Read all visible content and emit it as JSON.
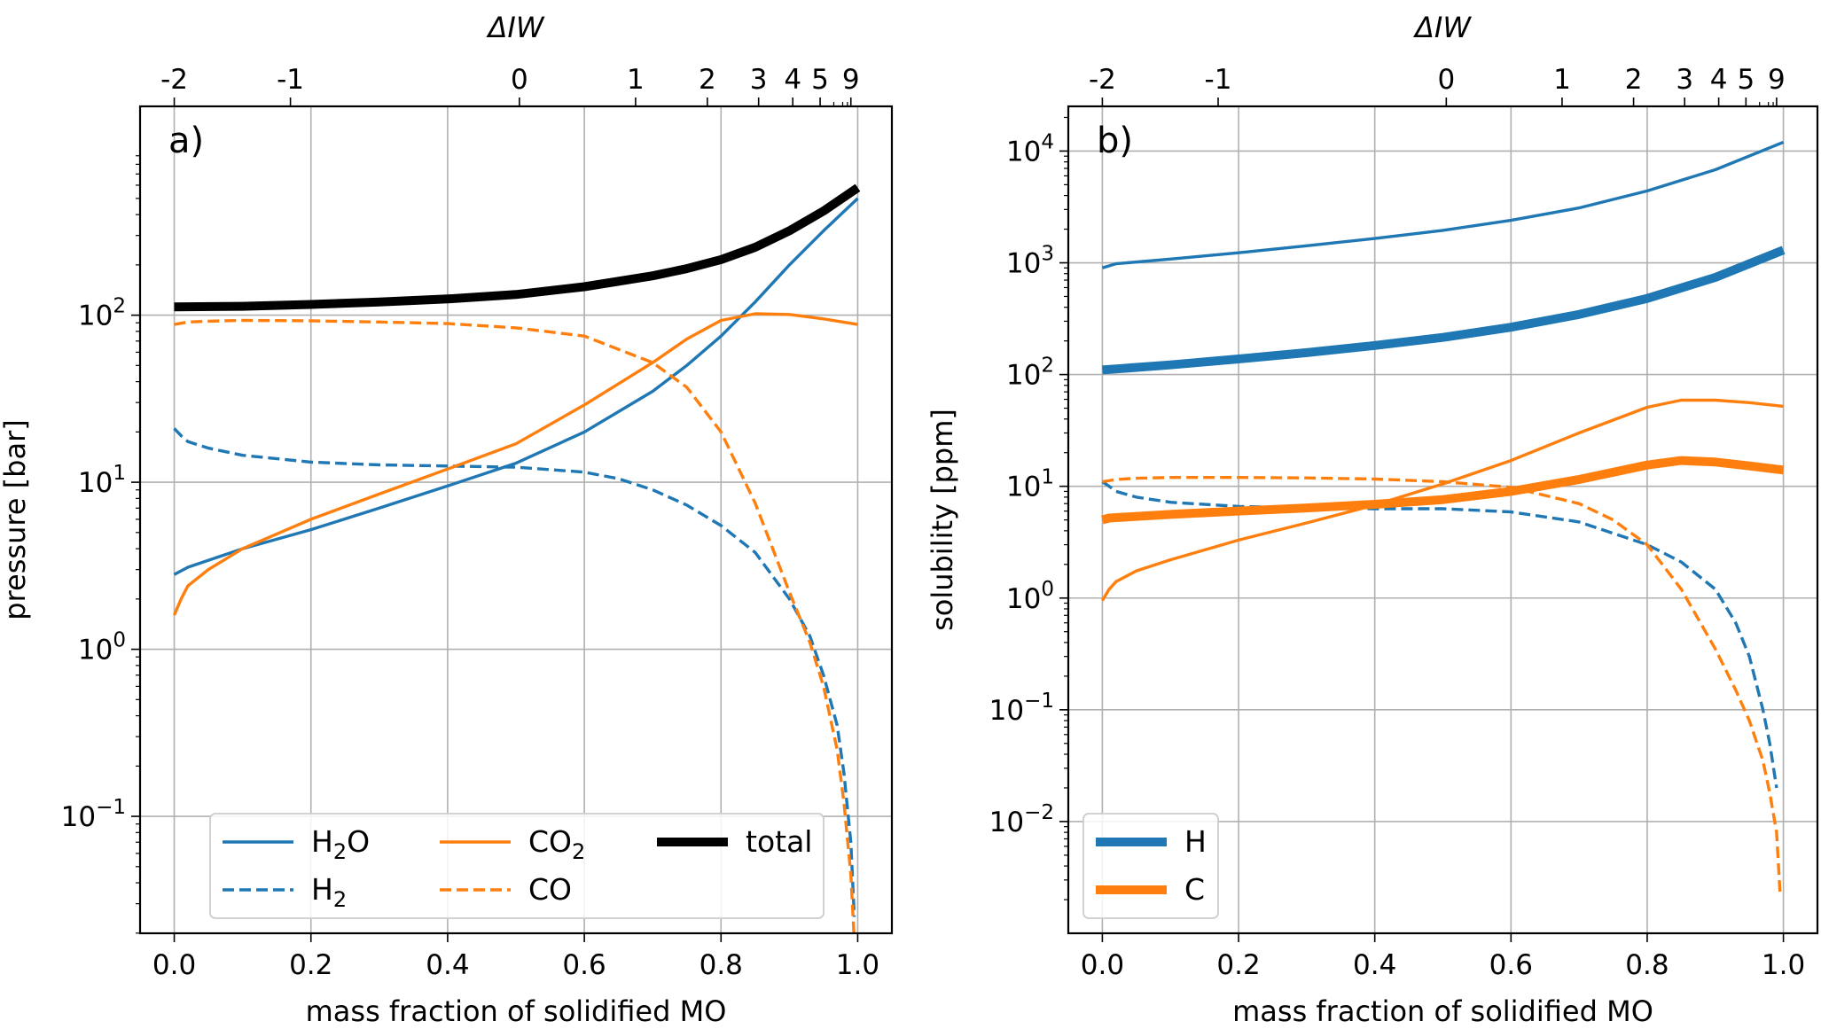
{
  "colors": {
    "blue": "#1f77b4",
    "orange": "#ff7f0e",
    "black": "#000000",
    "grid": "#b0b0b0"
  },
  "chart_data": [
    {
      "type": "line",
      "panel_label": "a)",
      "xlabel": "mass fraction of solidified MO",
      "ylabel": "pressure [bar]",
      "top_xlabel": "ΔIW",
      "xlim": [
        -0.05,
        1.05
      ],
      "ylim_log10": [
        -1.7,
        3.25
      ],
      "yscale": "log",
      "grid": true,
      "legend_position": "lower-center",
      "x_ticks": [
        "0.0",
        "0.2",
        "0.4",
        "0.6",
        "0.8",
        "1.0"
      ],
      "y_ticks": [
        {
          "base": "10",
          "exp": "−1"
        },
        {
          "base": "10",
          "exp": "0"
        },
        {
          "base": "10",
          "exp": "1"
        },
        {
          "base": "10",
          "exp": "2"
        }
      ],
      "top_ticks": [
        {
          "label": "-2",
          "x": 0.0
        },
        {
          "label": "-1",
          "x": 0.17
        },
        {
          "label": "0",
          "x": 0.505
        },
        {
          "label": "1",
          "x": 0.675
        },
        {
          "label": "2",
          "x": 0.78
        },
        {
          "label": "3",
          "x": 0.855
        },
        {
          "label": "4",
          "x": 0.905
        },
        {
          "label": "5",
          "x": 0.945
        },
        {
          "label": "9",
          "x": 0.99
        }
      ],
      "legend": [
        {
          "label": "H",
          "sub": "2",
          "tail": "O",
          "color": "#1f77b4",
          "dash": "solid",
          "width": "thin"
        },
        {
          "label": "H",
          "sub": "2",
          "tail": "",
          "color": "#1f77b4",
          "dash": "dashed",
          "width": "thin"
        },
        {
          "label": "CO",
          "sub": "2",
          "tail": "",
          "color": "#ff7f0e",
          "dash": "solid",
          "width": "thin"
        },
        {
          "label": "CO",
          "sub": "",
          "tail": "",
          "color": "#ff7f0e",
          "dash": "dashed",
          "width": "thin"
        },
        {
          "label": "total",
          "sub": "",
          "tail": "",
          "color": "#000000",
          "dash": "solid",
          "width": "thick"
        }
      ],
      "series": [
        {
          "name": "H2O",
          "color": "#1f77b4",
          "dash": "solid",
          "width": "thin",
          "x": [
            0,
            0.02,
            0.1,
            0.2,
            0.3,
            0.4,
            0.5,
            0.6,
            0.7,
            0.75,
            0.8,
            0.85,
            0.9,
            0.95,
            1.0
          ],
          "y": [
            2.8,
            3.1,
            4.0,
            5.2,
            7.0,
            9.5,
            13,
            20,
            35,
            50,
            75,
            120,
            200,
            320,
            500
          ]
        },
        {
          "name": "H2",
          "color": "#1f77b4",
          "dash": "dashed",
          "width": "thin",
          "x": [
            0,
            0.01,
            0.02,
            0.05,
            0.1,
            0.2,
            0.3,
            0.4,
            0.5,
            0.6,
            0.65,
            0.7,
            0.75,
            0.8,
            0.85,
            0.9,
            0.93,
            0.95,
            0.97,
            0.98,
            0.99,
            0.995
          ],
          "y": [
            21,
            19,
            17.5,
            16,
            14.5,
            13.2,
            12.7,
            12.5,
            12.3,
            11.5,
            10.5,
            9,
            7.3,
            5.5,
            3.8,
            2.0,
            1.2,
            0.7,
            0.35,
            0.18,
            0.07,
            0.025
          ]
        },
        {
          "name": "CO2",
          "color": "#ff7f0e",
          "dash": "solid",
          "width": "thin",
          "x": [
            0,
            0.01,
            0.02,
            0.05,
            0.1,
            0.2,
            0.3,
            0.4,
            0.5,
            0.6,
            0.7,
            0.75,
            0.8,
            0.85,
            0.9,
            0.95,
            1.0
          ],
          "y": [
            1.6,
            2.0,
            2.4,
            3.0,
            4.0,
            6.0,
            8.5,
            12,
            17,
            29,
            52,
            72,
            93,
            102,
            101,
            95,
            88
          ]
        },
        {
          "name": "CO",
          "color": "#ff7f0e",
          "dash": "dashed",
          "width": "thin",
          "x": [
            0,
            0.02,
            0.05,
            0.1,
            0.2,
            0.3,
            0.4,
            0.5,
            0.6,
            0.7,
            0.75,
            0.8,
            0.85,
            0.9,
            0.93,
            0.95,
            0.97,
            0.98,
            0.99,
            0.995
          ],
          "y": [
            88,
            91,
            92,
            93,
            92.5,
            91,
            89,
            84,
            75,
            52,
            37,
            20,
            7.5,
            2.2,
            1.1,
            0.6,
            0.25,
            0.12,
            0.045,
            0.018
          ]
        },
        {
          "name": "total",
          "color": "#000000",
          "dash": "solid",
          "width": "thick",
          "x": [
            0,
            0.1,
            0.2,
            0.3,
            0.4,
            0.5,
            0.6,
            0.7,
            0.75,
            0.8,
            0.85,
            0.9,
            0.95,
            1.0
          ],
          "y": [
            112,
            113,
            116,
            120,
            125,
            133,
            148,
            172,
            190,
            215,
            255,
            320,
            420,
            580
          ]
        }
      ]
    },
    {
      "type": "line",
      "panel_label": "b)",
      "xlabel": "mass fraction of solidified MO",
      "ylabel": "solubility [ppm]",
      "top_xlabel": "ΔIW",
      "xlim": [
        -0.05,
        1.05
      ],
      "ylim_log10": [
        -3.0,
        4.4
      ],
      "yscale": "log",
      "grid": true,
      "legend_position": "lower-left",
      "x_ticks": [
        "0.0",
        "0.2",
        "0.4",
        "0.6",
        "0.8",
        "1.0"
      ],
      "y_ticks": [
        {
          "base": "10",
          "exp": "−2"
        },
        {
          "base": "10",
          "exp": "−1"
        },
        {
          "base": "10",
          "exp": "0"
        },
        {
          "base": "10",
          "exp": "1"
        },
        {
          "base": "10",
          "exp": "2"
        },
        {
          "base": "10",
          "exp": "3"
        },
        {
          "base": "10",
          "exp": "4"
        }
      ],
      "top_ticks": [
        {
          "label": "-2",
          "x": 0.0
        },
        {
          "label": "-1",
          "x": 0.17
        },
        {
          "label": "0",
          "x": 0.505
        },
        {
          "label": "1",
          "x": 0.675
        },
        {
          "label": "2",
          "x": 0.78
        },
        {
          "label": "3",
          "x": 0.855
        },
        {
          "label": "4",
          "x": 0.905
        },
        {
          "label": "5",
          "x": 0.945
        },
        {
          "label": "9",
          "x": 0.99
        }
      ],
      "legend": [
        {
          "label": "H",
          "sub": "",
          "tail": "",
          "color": "#1f77b4",
          "dash": "solid",
          "width": "thick"
        },
        {
          "label": "C",
          "sub": "",
          "tail": "",
          "color": "#ff7f0e",
          "dash": "solid",
          "width": "thick"
        }
      ],
      "series": [
        {
          "color": "#1f77b4",
          "dash": "solid",
          "width": "thin",
          "x": [
            0,
            0.02,
            0.1,
            0.2,
            0.3,
            0.4,
            0.5,
            0.6,
            0.7,
            0.8,
            0.9,
            1.0
          ],
          "y": [
            900,
            980,
            1080,
            1230,
            1420,
            1650,
            1950,
            2400,
            3100,
            4400,
            6800,
            12000
          ]
        },
        {
          "color": "#1f77b4",
          "dash": "solid",
          "width": "thick",
          "x": [
            0,
            0.1,
            0.2,
            0.3,
            0.4,
            0.5,
            0.6,
            0.7,
            0.8,
            0.9,
            1.0
          ],
          "y": [
            110,
            122,
            138,
            157,
            182,
            215,
            265,
            345,
            480,
            740,
            1300
          ]
        },
        {
          "color": "#1f77b4",
          "dash": "dashed",
          "width": "thin",
          "x": [
            0,
            0.01,
            0.02,
            0.05,
            0.1,
            0.2,
            0.3,
            0.4,
            0.5,
            0.6,
            0.7,
            0.8,
            0.85,
            0.9,
            0.93,
            0.95,
            0.97,
            0.98,
            0.99
          ],
          "y": [
            11,
            10,
            9.0,
            8.0,
            7.2,
            6.6,
            6.4,
            6.3,
            6.3,
            5.9,
            4.8,
            3.0,
            2.1,
            1.2,
            0.6,
            0.3,
            0.1,
            0.05,
            0.02
          ]
        },
        {
          "color": "#ff7f0e",
          "dash": "solid",
          "width": "thin",
          "x": [
            0,
            0.01,
            0.02,
            0.05,
            0.1,
            0.2,
            0.3,
            0.4,
            0.5,
            0.6,
            0.7,
            0.8,
            0.85,
            0.9,
            0.95,
            1.0
          ],
          "y": [
            0.95,
            1.2,
            1.4,
            1.75,
            2.2,
            3.3,
            4.7,
            6.8,
            10.5,
            17,
            30,
            51,
            59,
            59,
            56,
            52
          ]
        },
        {
          "color": "#ff7f0e",
          "dash": "solid",
          "width": "thick",
          "x": [
            0,
            0.01,
            0.1,
            0.2,
            0.3,
            0.4,
            0.5,
            0.6,
            0.7,
            0.8,
            0.85,
            0.9,
            0.95,
            1.0
          ],
          "y": [
            5,
            5.2,
            5.6,
            6.0,
            6.4,
            6.9,
            7.6,
            9.0,
            11.5,
            15.5,
            17,
            16.5,
            15.2,
            14
          ]
        },
        {
          "color": "#ff7f0e",
          "dash": "dashed",
          "width": "thin",
          "x": [
            0,
            0.02,
            0.05,
            0.1,
            0.2,
            0.3,
            0.4,
            0.5,
            0.6,
            0.7,
            0.75,
            0.8,
            0.85,
            0.9,
            0.93,
            0.95,
            0.97,
            0.98,
            0.99,
            0.995
          ],
          "y": [
            11,
            11.5,
            11.8,
            12,
            12,
            11.9,
            11.6,
            11,
            9.8,
            7,
            5.0,
            3.0,
            1.2,
            0.35,
            0.15,
            0.08,
            0.035,
            0.018,
            0.008,
            0.0023
          ]
        }
      ]
    }
  ]
}
